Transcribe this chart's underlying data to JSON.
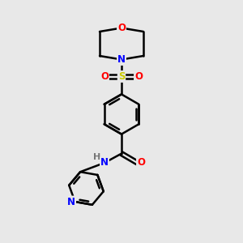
{
  "bg_color": "#e8e8e8",
  "bond_color": "#000000",
  "bond_width": 1.8,
  "atom_colors": {
    "O": "#ff0000",
    "N": "#0000ff",
    "S": "#cccc00",
    "H": "#777777",
    "C": "#000000"
  },
  "font_size": 8.5,
  "figsize": [
    3.0,
    3.0
  ],
  "dpi": 100,
  "xlim": [
    0,
    10
  ],
  "ylim": [
    0,
    10
  ]
}
